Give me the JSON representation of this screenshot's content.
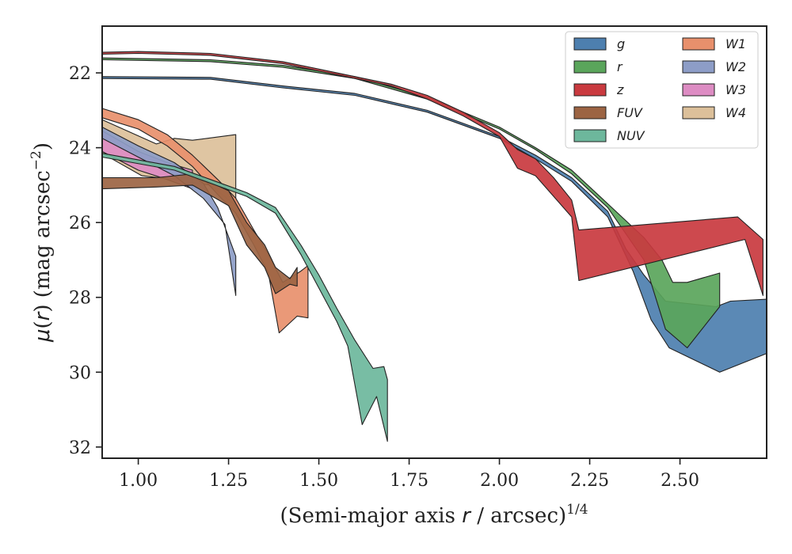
{
  "chart_data": {
    "type": "area",
    "xlabel": "(Semi-major axis r / arcsec)1/4",
    "ylabel": "μ(r) (mag arcsec−2)",
    "xlim": [
      0.9,
      2.74
    ],
    "ylim": [
      32.3,
      20.75
    ],
    "y_inverted": true,
    "xticks": [
      "1.00",
      "1.25",
      "1.50",
      "1.75",
      "2.00",
      "2.25",
      "2.50"
    ],
    "xtick_values": [
      1.0,
      1.25,
      1.5,
      1.75,
      2.0,
      2.25,
      2.5
    ],
    "yticks": [
      "22",
      "24",
      "26",
      "28",
      "30",
      "32"
    ],
    "ytick_values": [
      22,
      24,
      26,
      28,
      30,
      32
    ],
    "legend_position": "top-right",
    "grid": false,
    "series": [
      {
        "name": "W4",
        "color": "#dcc09a",
        "upper": [
          [
            0.9,
            23.25
          ],
          [
            1.05,
            23.9
          ],
          [
            1.1,
            23.75
          ],
          [
            1.15,
            23.8
          ],
          [
            1.27,
            23.65
          ]
        ],
        "lower": [
          [
            0.9,
            24.15
          ],
          [
            1.01,
            24.75
          ],
          [
            1.1,
            24.85
          ],
          [
            1.2,
            25.0
          ],
          [
            1.27,
            25.55
          ]
        ]
      },
      {
        "name": "W3",
        "color": "#dd8cc3",
        "upper": [
          [
            0.9,
            23.55
          ],
          [
            1.0,
            24.1
          ],
          [
            1.08,
            24.4
          ],
          [
            1.15,
            24.6
          ]
        ],
        "lower": [
          [
            0.9,
            24.1
          ],
          [
            1.0,
            24.6
          ],
          [
            1.08,
            24.85
          ],
          [
            1.15,
            25.1
          ]
        ]
      },
      {
        "name": "W2",
        "color": "#8d9dc7",
        "upper": [
          [
            0.9,
            23.45
          ],
          [
            1.0,
            23.95
          ],
          [
            1.1,
            24.4
          ],
          [
            1.18,
            24.95
          ],
          [
            1.22,
            25.6
          ],
          [
            1.27,
            26.9
          ]
        ],
        "lower": [
          [
            0.9,
            23.75
          ],
          [
            1.0,
            24.25
          ],
          [
            1.1,
            24.75
          ],
          [
            1.18,
            25.35
          ],
          [
            1.24,
            26.05
          ],
          [
            1.27,
            27.95
          ]
        ]
      },
      {
        "name": "W1",
        "color": "#e8906c",
        "upper": [
          [
            0.9,
            22.95
          ],
          [
            1.0,
            23.25
          ],
          [
            1.08,
            23.65
          ],
          [
            1.15,
            24.2
          ],
          [
            1.22,
            24.85
          ],
          [
            1.27,
            25.35
          ],
          [
            1.32,
            26.2
          ],
          [
            1.36,
            26.85
          ],
          [
            1.4,
            27.6
          ],
          [
            1.45,
            27.3
          ],
          [
            1.47,
            27.15
          ]
        ],
        "lower": [
          [
            0.9,
            23.2
          ],
          [
            1.0,
            23.5
          ],
          [
            1.08,
            23.95
          ],
          [
            1.15,
            24.5
          ],
          [
            1.22,
            25.25
          ],
          [
            1.27,
            25.75
          ],
          [
            1.32,
            26.6
          ],
          [
            1.36,
            27.35
          ],
          [
            1.39,
            28.95
          ],
          [
            1.44,
            28.5
          ],
          [
            1.47,
            28.55
          ]
        ]
      },
      {
        "name": "FUV",
        "color": "#9c6443",
        "upper": [
          [
            0.9,
            24.8
          ],
          [
            1.05,
            24.8
          ],
          [
            1.15,
            24.7
          ],
          [
            1.25,
            25.15
          ],
          [
            1.3,
            26.0
          ],
          [
            1.35,
            26.6
          ],
          [
            1.38,
            27.2
          ],
          [
            1.42,
            27.5
          ],
          [
            1.44,
            27.2
          ]
        ],
        "lower": [
          [
            0.9,
            25.1
          ],
          [
            1.05,
            25.05
          ],
          [
            1.15,
            25.0
          ],
          [
            1.25,
            25.55
          ],
          [
            1.3,
            26.6
          ],
          [
            1.35,
            27.2
          ],
          [
            1.38,
            27.9
          ],
          [
            1.42,
            27.65
          ],
          [
            1.44,
            27.7
          ]
        ]
      },
      {
        "name": "NUV",
        "color": "#6db79c",
        "upper": [
          [
            0.9,
            24.15
          ],
          [
            1.1,
            24.5
          ],
          [
            1.2,
            24.85
          ],
          [
            1.3,
            25.2
          ],
          [
            1.38,
            25.6
          ],
          [
            1.45,
            26.6
          ],
          [
            1.5,
            27.4
          ],
          [
            1.55,
            28.3
          ],
          [
            1.6,
            29.15
          ],
          [
            1.65,
            29.9
          ],
          [
            1.68,
            29.85
          ],
          [
            1.69,
            30.2
          ]
        ],
        "lower": [
          [
            0.9,
            24.25
          ],
          [
            1.1,
            24.6
          ],
          [
            1.2,
            24.95
          ],
          [
            1.3,
            25.3
          ],
          [
            1.38,
            25.75
          ],
          [
            1.45,
            26.85
          ],
          [
            1.5,
            27.75
          ],
          [
            1.55,
            28.65
          ],
          [
            1.58,
            29.3
          ],
          [
            1.62,
            31.4
          ],
          [
            1.66,
            30.65
          ],
          [
            1.69,
            31.85
          ]
        ]
      },
      {
        "name": "g",
        "color": "#4d7faf",
        "upper": [
          [
            0.9,
            22.1
          ],
          [
            1.2,
            22.12
          ],
          [
            1.4,
            22.35
          ],
          [
            1.6,
            22.55
          ],
          [
            1.8,
            23.0
          ],
          [
            2.0,
            23.7
          ],
          [
            2.1,
            24.2
          ],
          [
            2.2,
            24.8
          ],
          [
            2.3,
            25.7
          ],
          [
            2.35,
            26.7
          ],
          [
            2.4,
            27.4
          ],
          [
            2.46,
            28.1
          ],
          [
            2.6,
            28.25
          ],
          [
            2.64,
            28.1
          ],
          [
            2.74,
            28.05
          ]
        ],
        "lower": [
          [
            0.9,
            22.15
          ],
          [
            1.2,
            22.17
          ],
          [
            1.4,
            22.4
          ],
          [
            1.6,
            22.6
          ],
          [
            1.8,
            23.05
          ],
          [
            2.0,
            23.75
          ],
          [
            2.1,
            24.3
          ],
          [
            2.2,
            24.9
          ],
          [
            2.3,
            25.85
          ],
          [
            2.37,
            27.3
          ],
          [
            2.42,
            28.6
          ],
          [
            2.47,
            29.35
          ],
          [
            2.61,
            30.0
          ],
          [
            2.74,
            29.5
          ]
        ]
      },
      {
        "name": "r",
        "color": "#5aa55b",
        "upper": [
          [
            0.9,
            21.6
          ],
          [
            1.2,
            21.65
          ],
          [
            1.4,
            21.8
          ],
          [
            1.6,
            22.1
          ],
          [
            1.8,
            22.65
          ],
          [
            2.0,
            23.45
          ],
          [
            2.1,
            24.0
          ],
          [
            2.2,
            24.6
          ],
          [
            2.3,
            25.5
          ],
          [
            2.4,
            26.4
          ],
          [
            2.45,
            27.0
          ],
          [
            2.48,
            27.6
          ],
          [
            2.52,
            27.6
          ],
          [
            2.61,
            27.35
          ]
        ],
        "lower": [
          [
            0.9,
            21.65
          ],
          [
            1.2,
            21.7
          ],
          [
            1.4,
            21.85
          ],
          [
            1.6,
            22.15
          ],
          [
            1.8,
            22.7
          ],
          [
            2.0,
            23.5
          ],
          [
            2.1,
            24.05
          ],
          [
            2.2,
            24.7
          ],
          [
            2.3,
            25.6
          ],
          [
            2.4,
            27.0
          ],
          [
            2.46,
            28.85
          ],
          [
            2.52,
            29.35
          ],
          [
            2.61,
            28.25
          ]
        ]
      },
      {
        "name": "z",
        "color": "#c93a3f",
        "upper": [
          [
            0.9,
            21.45
          ],
          [
            1.0,
            21.43
          ],
          [
            1.2,
            21.48
          ],
          [
            1.4,
            21.7
          ],
          [
            1.6,
            22.1
          ],
          [
            1.7,
            22.3
          ],
          [
            1.8,
            22.6
          ],
          [
            1.9,
            23.05
          ],
          [
            2.0,
            23.6
          ],
          [
            2.05,
            24.05
          ],
          [
            2.1,
            24.3
          ],
          [
            2.15,
            24.8
          ],
          [
            2.2,
            25.4
          ],
          [
            2.22,
            26.2
          ],
          [
            2.66,
            25.85
          ],
          [
            2.73,
            26.45
          ]
        ],
        "lower": [
          [
            0.9,
            21.5
          ],
          [
            1.0,
            21.48
          ],
          [
            1.2,
            21.53
          ],
          [
            1.4,
            21.75
          ],
          [
            1.6,
            22.15
          ],
          [
            1.7,
            22.35
          ],
          [
            1.8,
            22.7
          ],
          [
            1.9,
            23.15
          ],
          [
            2.0,
            23.7
          ],
          [
            2.05,
            24.55
          ],
          [
            2.1,
            24.75
          ],
          [
            2.15,
            25.3
          ],
          [
            2.2,
            25.85
          ],
          [
            2.22,
            27.55
          ],
          [
            2.68,
            26.45
          ],
          [
            2.73,
            27.95
          ]
        ]
      }
    ],
    "legend_order": [
      "g",
      "r",
      "z",
      "FUV",
      "NUV",
      "W1",
      "W2",
      "W3",
      "W4"
    ]
  }
}
